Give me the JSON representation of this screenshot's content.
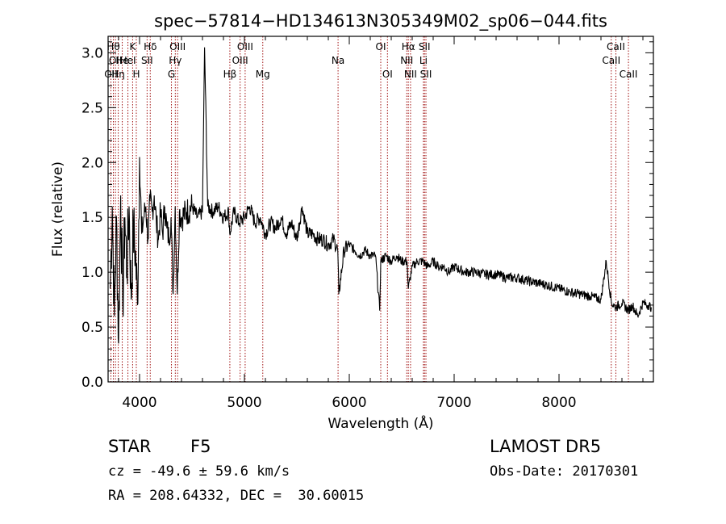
{
  "chart_data": {
    "type": "line",
    "title": "spec−57814−HD134613N305349M02_sp06−044.fits",
    "xlabel": "Wavelength (Å)",
    "ylabel": "Flux (relative)",
    "xlim": [
      3700,
      8900
    ],
    "ylim": [
      0.0,
      3.15
    ],
    "x_ticks": [
      4000,
      5000,
      6000,
      7000,
      8000
    ],
    "y_ticks": [
      0.0,
      0.5,
      1.0,
      1.5,
      2.0,
      2.5,
      3.0
    ],
    "x_tick_labels": [
      "4000",
      "5000",
      "6000",
      "7000",
      "8000"
    ],
    "y_tick_labels": [
      "0.0",
      "0.5",
      "1.0",
      "1.5",
      "2.0",
      "2.5",
      "3.0"
    ],
    "grid": false,
    "series": [
      {
        "color": "#000000",
        "x": [
          3720,
          3740,
          3760,
          3780,
          3800,
          3820,
          3840,
          3860,
          3880,
          3900,
          3920,
          3940,
          3960,
          3980,
          4000,
          4020,
          4040,
          4060,
          4080,
          4100,
          4120,
          4140,
          4160,
          4180,
          4200,
          4220,
          4240,
          4260,
          4280,
          4300,
          4320,
          4340,
          4360,
          4380,
          4400,
          4450,
          4500,
          4550,
          4600,
          4620,
          4650,
          4700,
          4750,
          4800,
          4850,
          4860,
          4900,
          4950,
          5000,
          5050,
          5100,
          5150,
          5200,
          5250,
          5300,
          5350,
          5400,
          5450,
          5500,
          5550,
          5600,
          5650,
          5700,
          5750,
          5800,
          5850,
          5890,
          5900,
          5950,
          6000,
          6050,
          6100,
          6150,
          6200,
          6250,
          6290,
          6300,
          6350,
          6400,
          6450,
          6500,
          6550,
          6563,
          6600,
          6650,
          6700,
          6750,
          6800,
          6850,
          6900,
          6950,
          7000,
          7100,
          7200,
          7300,
          7400,
          7500,
          7600,
          7700,
          7800,
          7900,
          8000,
          8100,
          8200,
          8300,
          8400,
          8450,
          8500,
          8540,
          8600,
          8662,
          8700,
          8750,
          8800,
          8850,
          8880
        ],
        "y": [
          0.85,
          1.6,
          0.6,
          1.5,
          0.35,
          1.7,
          0.7,
          1.5,
          1.0,
          1.6,
          0.75,
          1.4,
          1.2,
          0.7,
          2.05,
          1.35,
          1.5,
          1.6,
          1.3,
          1.65,
          1.55,
          1.7,
          1.45,
          1.3,
          1.55,
          1.35,
          1.6,
          1.4,
          1.3,
          1.5,
          0.8,
          1.6,
          0.8,
          1.55,
          1.5,
          1.55,
          1.6,
          1.5,
          1.55,
          3.05,
          1.6,
          1.55,
          1.6,
          1.5,
          1.55,
          1.35,
          1.55,
          1.45,
          1.5,
          1.6,
          1.45,
          1.5,
          1.35,
          1.45,
          1.4,
          1.5,
          1.35,
          1.45,
          1.3,
          1.6,
          1.35,
          1.35,
          1.3,
          1.3,
          1.25,
          1.3,
          1.2,
          0.8,
          1.2,
          1.25,
          1.2,
          1.15,
          1.2,
          1.15,
          1.15,
          0.65,
          1.1,
          1.15,
          1.1,
          1.15,
          1.1,
          1.1,
          0.85,
          1.05,
          1.1,
          1.1,
          1.05,
          1.1,
          1.05,
          1.05,
          1.0,
          1.05,
          1.0,
          1.0,
          0.98,
          0.98,
          0.95,
          0.95,
          0.92,
          0.9,
          0.88,
          0.85,
          0.82,
          0.8,
          0.78,
          0.75,
          1.1,
          0.72,
          0.68,
          0.72,
          0.65,
          0.7,
          0.6,
          0.72,
          0.7,
          0.68
        ]
      }
    ],
    "lines": [
      {
        "x": 3727,
        "label": "OII",
        "row": 2
      },
      {
        "x": 3750,
        "label": "Hθ",
        "row": 0
      },
      {
        "x": 3770,
        "label": "OII",
        "row": 1
      },
      {
        "x": 3797,
        "label": "Hη",
        "row": 2
      },
      {
        "x": 3835,
        "label": "He",
        "row": 1
      },
      {
        "x": 3889,
        "label": "HeI",
        "row": 1
      },
      {
        "x": 3934,
        "label": "K",
        "row": 0
      },
      {
        "x": 3969,
        "label": "H",
        "row": 2
      },
      {
        "x": 4072,
        "label": "SII",
        "row": 1
      },
      {
        "x": 4102,
        "label": "Hδ",
        "row": 0
      },
      {
        "x": 4304,
        "label": "G",
        "row": 2
      },
      {
        "x": 4341,
        "label": "Hγ",
        "row": 1
      },
      {
        "x": 4363,
        "label": "OIII",
        "row": 0
      },
      {
        "x": 4861,
        "label": "Hβ",
        "row": 2
      },
      {
        "x": 4959,
        "label": "OIII",
        "row": 1
      },
      {
        "x": 5007,
        "label": "OIII",
        "row": 0
      },
      {
        "x": 5175,
        "label": "Mg",
        "row": 2
      },
      {
        "x": 5893,
        "label": "Na",
        "row": 1
      },
      {
        "x": 6300,
        "label": "OI",
        "row": 0
      },
      {
        "x": 6364,
        "label": "OI",
        "row": 2
      },
      {
        "x": 6548,
        "label": "NII",
        "row": 1
      },
      {
        "x": 6563,
        "label": "Hα",
        "row": 0
      },
      {
        "x": 6584,
        "label": "NII",
        "row": 2
      },
      {
        "x": 6707,
        "label": "Li",
        "row": 1
      },
      {
        "x": 6717,
        "label": "SII",
        "row": 0
      },
      {
        "x": 6731,
        "label": "SII",
        "row": 2
      },
      {
        "x": 8498,
        "label": "CaII",
        "row": 1
      },
      {
        "x": 8542,
        "label": "CaII",
        "row": 0
      },
      {
        "x": 8662,
        "label": "CaII",
        "row": 2
      }
    ],
    "line_color": "#a01010"
  },
  "info": {
    "class": "STAR",
    "subclass": "F5",
    "survey": "LAMOST DR5",
    "redshift": "cz = -49.6 ± 59.6 km/s",
    "obs_date": "Obs-Date: 20170301",
    "coords": "RA = 208.64332, DEC =  30.60015"
  }
}
